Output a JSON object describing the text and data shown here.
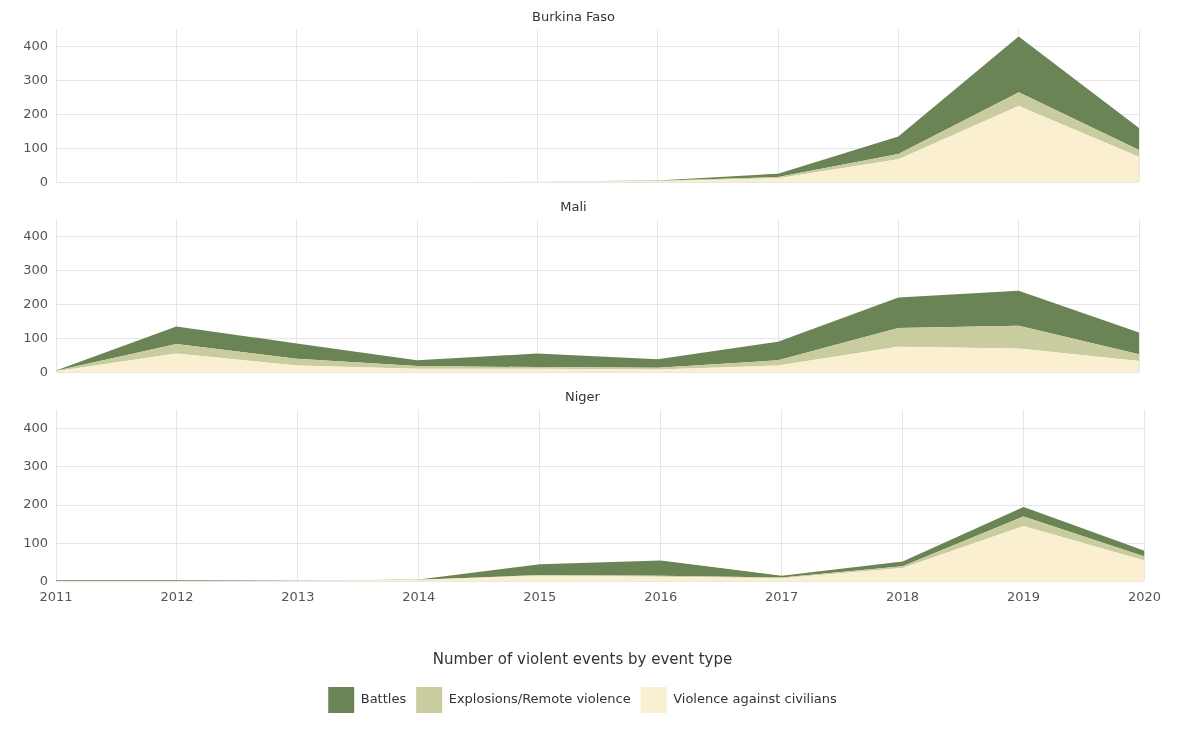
{
  "chart_data": [
    {
      "type": "area",
      "title": "Burkina Faso",
      "categories": [
        "2011",
        "2012",
        "2013",
        "2014",
        "2015",
        "2016",
        "2017",
        "2018",
        "2019",
        "2020"
      ],
      "stacked": true,
      "ylim": [
        0,
        450
      ],
      "yticks": [
        0,
        100,
        200,
        300,
        400
      ],
      "grid": true,
      "tick_labels": "y",
      "series": [
        {
          "color": "#faefd0",
          "values": [
            0,
            0,
            0,
            0,
            2,
            3,
            12,
            68,
            225,
            75
          ]
        },
        {
          "color": "#c8cc9e",
          "values": [
            0,
            0,
            0,
            0,
            0,
            1,
            3,
            15,
            40,
            20
          ]
        },
        {
          "color": "#6b8455",
          "values": [
            0,
            0,
            0,
            0,
            0,
            1,
            10,
            52,
            165,
            65
          ]
        }
      ]
    },
    {
      "type": "area",
      "title": "Mali",
      "categories": [
        "2011",
        "2012",
        "2013",
        "2014",
        "2015",
        "2016",
        "2017",
        "2018",
        "2019",
        "2020"
      ],
      "stacked": true,
      "ylim": [
        0,
        450
      ],
      "yticks": [
        0,
        100,
        200,
        300,
        400
      ],
      "grid": true,
      "tick_labels": "y",
      "series": [
        {
          "color": "#faefd0",
          "values": [
            3,
            55,
            20,
            10,
            10,
            8,
            20,
            75,
            70,
            33
          ]
        },
        {
          "color": "#c8cc9e",
          "values": [
            1,
            28,
            20,
            8,
            5,
            5,
            15,
            55,
            67,
            20
          ]
        },
        {
          "color": "#6b8455",
          "values": [
            1,
            52,
            45,
            17,
            40,
            25,
            55,
            90,
            103,
            64
          ]
        }
      ]
    },
    {
      "type": "area",
      "title": "Niger",
      "categories": [
        "2011",
        "2012",
        "2013",
        "2014",
        "2015",
        "2016",
        "2017",
        "2018",
        "2019",
        "2020"
      ],
      "stacked": true,
      "ylim": [
        0,
        450
      ],
      "yticks": [
        0,
        100,
        200,
        300,
        400
      ],
      "grid": true,
      "legend": "bottom",
      "legend_title": "Number of violent events by event type",
      "series": [
        {
          "name": "Violence against civilians",
          "color": "#faefd0",
          "values": [
            1,
            1,
            1,
            4,
            15,
            12,
            8,
            35,
            145,
            55
          ]
        },
        {
          "name": "Explosions/Remote violence",
          "color": "#c8cc9e",
          "values": [
            0,
            0,
            0,
            0,
            2,
            3,
            2,
            5,
            25,
            10
          ]
        },
        {
          "name": "Battles",
          "color": "#6b8455",
          "values": [
            2,
            2,
            1,
            1,
            28,
            40,
            5,
            12,
            25,
            15
          ]
        }
      ]
    }
  ]
}
